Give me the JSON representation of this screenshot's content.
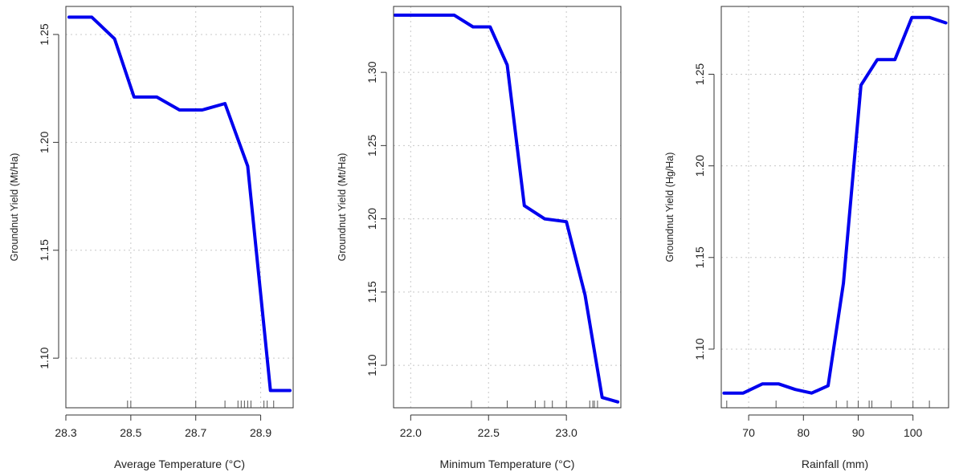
{
  "chart_data": [
    {
      "type": "line",
      "xlabel": "Average Temperature (°C)",
      "ylabel": "Groundnut Yield (Mt/Ha)",
      "xlim": [
        28.3,
        29.0
      ],
      "ylim": [
        1.077,
        1.263
      ],
      "xticks": [
        "28.3",
        "28.5",
        "28.7",
        "28.9"
      ],
      "yticks": [
        "1.10",
        "1.15",
        "1.20",
        "1.25"
      ],
      "grid": true,
      "line_color": "#0000ee",
      "series": [
        {
          "x": [
            28.31,
            28.38,
            28.45,
            28.51,
            28.58,
            28.65,
            28.72,
            28.79,
            28.86,
            28.93,
            28.99
          ],
          "y": [
            1.258,
            1.258,
            1.248,
            1.221,
            1.221,
            1.215,
            1.215,
            1.218,
            1.189,
            1.085,
            1.085
          ]
        }
      ],
      "rug": [
        28.49,
        28.5,
        28.7,
        28.79,
        28.83,
        28.84,
        28.85,
        28.86,
        28.87,
        28.91,
        28.92,
        28.94
      ]
    },
    {
      "type": "line",
      "xlabel": "Minimum Temperature (°C)",
      "ylabel": "Groundnut Yield (Mt/Ha)",
      "xlim": [
        21.89,
        23.35
      ],
      "ylim": [
        1.071,
        1.345
      ],
      "xticks": [
        "22.0",
        "22.5",
        "23.0"
      ],
      "yticks": [
        "1.10",
        "1.15",
        "1.20",
        "1.25",
        "1.30"
      ],
      "grid": true,
      "line_color": "#0000ee",
      "series": [
        {
          "x": [
            21.9,
            22.03,
            22.15,
            22.28,
            22.4,
            22.51,
            22.62,
            22.73,
            22.86,
            23.0,
            23.12,
            23.23,
            23.33
          ],
          "y": [
            1.339,
            1.339,
            1.339,
            1.339,
            1.331,
            1.331,
            1.305,
            1.209,
            1.2,
            1.198,
            1.148,
            1.078,
            1.075
          ]
        }
      ],
      "rug": [
        22.39,
        22.62,
        22.8,
        22.86,
        22.91,
        23.0,
        23.15,
        23.17,
        23.18,
        23.2
      ]
    },
    {
      "type": "line",
      "xlabel": "Rainfall (mm)",
      "ylabel": "Groundnut Yield (Hg/Ha)",
      "xlim": [
        65,
        106.5
      ],
      "ylim": [
        1.068,
        1.287
      ],
      "xticks": [
        "70",
        "80",
        "90",
        "100"
      ],
      "yticks": [
        "1.10",
        "1.15",
        "1.20",
        "1.25"
      ],
      "grid": true,
      "line_color": "#0000ee",
      "series": [
        {
          "x": [
            65.5,
            69.0,
            72.5,
            75.5,
            78.5,
            81.5,
            84.5,
            87.3,
            90.5,
            93.5,
            96.7,
            99.8,
            103.0,
            106.0
          ],
          "y": [
            1.076,
            1.076,
            1.081,
            1.081,
            1.078,
            1.076,
            1.08,
            1.136,
            1.244,
            1.258,
            1.258,
            1.281,
            1.281,
            1.278
          ]
        }
      ],
      "rug": [
        66,
        75,
        86,
        88,
        90,
        92,
        92.5,
        96,
        100,
        103
      ]
    }
  ]
}
